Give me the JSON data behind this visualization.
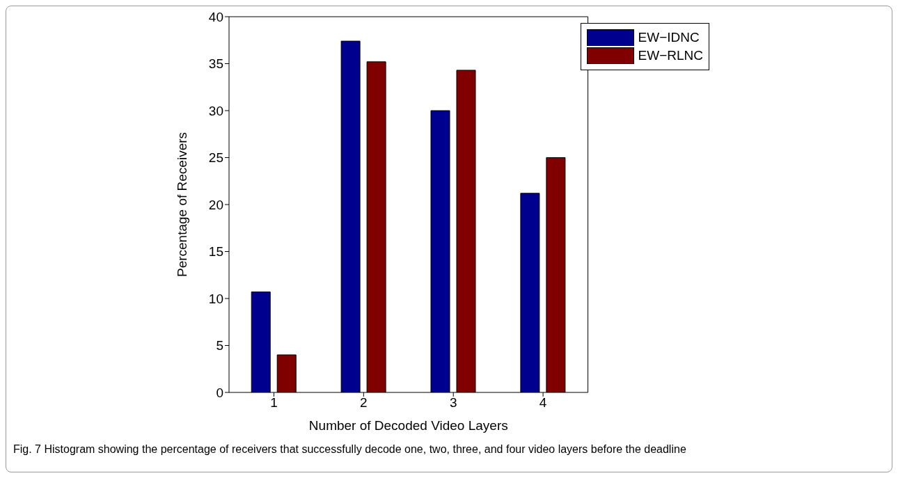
{
  "chart_data": {
    "type": "bar",
    "xlabel": "Number of Decoded Video Layers",
    "ylabel": "Percentage of Receivers",
    "categories": [
      "1",
      "2",
      "3",
      "4"
    ],
    "series": [
      {
        "name": "EW−IDNC",
        "color": "#00008f",
        "values": [
          10.7,
          37.4,
          30.0,
          21.2
        ]
      },
      {
        "name": "EW−RLNC",
        "color": "#800000",
        "values": [
          4.0,
          35.2,
          34.3,
          25.0
        ]
      }
    ],
    "ylim": [
      0,
      40
    ],
    "yticks": [
      0,
      5,
      10,
      15,
      20,
      25,
      30,
      35,
      40
    ],
    "grid": false,
    "legend": "top right",
    "annotations": [
      "Fig. 7 Histogram showing the percentage of receivers that successfully decode one, two, three, and four video layers before the deadline"
    ]
  }
}
